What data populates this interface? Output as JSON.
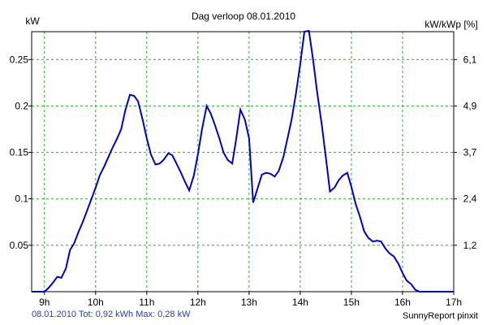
{
  "chart_data": {
    "type": "line",
    "title": "Dag  verloop 08.01.2010",
    "ylabel_left": "kW",
    "ylabel_right": "kW/kWp [%]",
    "xlim": [
      8.75,
      17.0
    ],
    "ylim": [
      0,
      0.28
    ],
    "x_ticks": [
      9,
      10,
      11,
      12,
      13,
      14,
      15,
      16,
      17
    ],
    "x_tick_labels": [
      "9h",
      "10h",
      "11h",
      "12h",
      "13h",
      "14h",
      "15h",
      "16h",
      "17h"
    ],
    "y_ticks_left": [
      0.05,
      0.1,
      0.15,
      0.2,
      0.25
    ],
    "y_tick_labels_left": [
      "0.05",
      "0.1",
      "0.15",
      "0.2",
      "0.25"
    ],
    "y_ticks_right_at_kw": [
      0.05,
      0.1,
      0.15,
      0.2,
      0.25
    ],
    "y_tick_labels_right": [
      "1,2",
      "2,4",
      "3,7",
      "4,9",
      "6,1"
    ],
    "grid": true,
    "grid_color": "#00cc00",
    "line_color": "#0000cc",
    "series": [
      {
        "x": [
          8.75,
          9.0,
          9.08,
          9.17,
          9.25,
          9.33,
          9.42,
          9.5,
          9.58,
          9.67,
          9.75,
          9.83,
          9.92,
          10.0,
          10.08,
          10.17,
          10.25,
          10.33,
          10.42,
          10.5,
          10.58,
          10.67,
          10.75,
          10.83,
          10.92,
          11.0,
          11.08,
          11.17,
          11.25,
          11.33,
          11.42,
          11.5,
          11.58,
          11.67,
          11.75,
          11.83,
          11.92,
          12.0,
          12.08,
          12.17,
          12.25,
          12.33,
          12.42,
          12.5,
          12.58,
          12.67,
          12.75,
          12.83,
          12.92,
          13.0,
          13.08,
          13.17,
          13.25,
          13.33,
          13.42,
          13.5,
          13.58,
          13.67,
          13.75,
          13.83,
          13.92,
          14.0,
          14.08,
          14.17,
          14.25,
          14.33,
          14.42,
          14.5,
          14.58,
          14.67,
          14.75,
          14.83,
          14.92,
          15.0,
          15.08,
          15.17,
          15.25,
          15.33,
          15.42,
          15.5,
          15.58,
          15.67,
          15.75,
          15.83,
          15.92,
          16.0,
          16.08,
          16.17,
          16.25,
          16.33,
          16.42,
          16.5,
          16.58,
          16.67,
          16.75,
          16.83,
          16.92,
          17.0
        ],
        "y": [
          0.0,
          0.0,
          0.004,
          0.01,
          0.016,
          0.015,
          0.025,
          0.045,
          0.052,
          0.065,
          0.075,
          0.087,
          0.1,
          0.112,
          0.125,
          0.135,
          0.145,
          0.155,
          0.165,
          0.175,
          0.195,
          0.212,
          0.211,
          0.205,
          0.185,
          0.165,
          0.148,
          0.137,
          0.138,
          0.142,
          0.149,
          0.147,
          0.138,
          0.128,
          0.118,
          0.109,
          0.125,
          0.148,
          0.175,
          0.2,
          0.192,
          0.18,
          0.165,
          0.15,
          0.142,
          0.138,
          0.165,
          0.196,
          0.185,
          0.165,
          0.096,
          0.112,
          0.126,
          0.128,
          0.127,
          0.124,
          0.13,
          0.145,
          0.165,
          0.185,
          0.215,
          0.245,
          0.28,
          0.281,
          0.25,
          0.215,
          0.18,
          0.145,
          0.108,
          0.112,
          0.12,
          0.125,
          0.128,
          0.113,
          0.095,
          0.08,
          0.065,
          0.058,
          0.054,
          0.055,
          0.054,
          0.046,
          0.041,
          0.038,
          0.03,
          0.02,
          0.012,
          0.008,
          0.002,
          0.0,
          0.0,
          0.0,
          0.0,
          0.0,
          0.0,
          0.0,
          0.0,
          0.0
        ]
      }
    ],
    "footer_left": "08.01.2010 Tot: 0,92 kWh Max: 0,28 kW",
    "footer_right": "SunnyReport pinxit"
  }
}
